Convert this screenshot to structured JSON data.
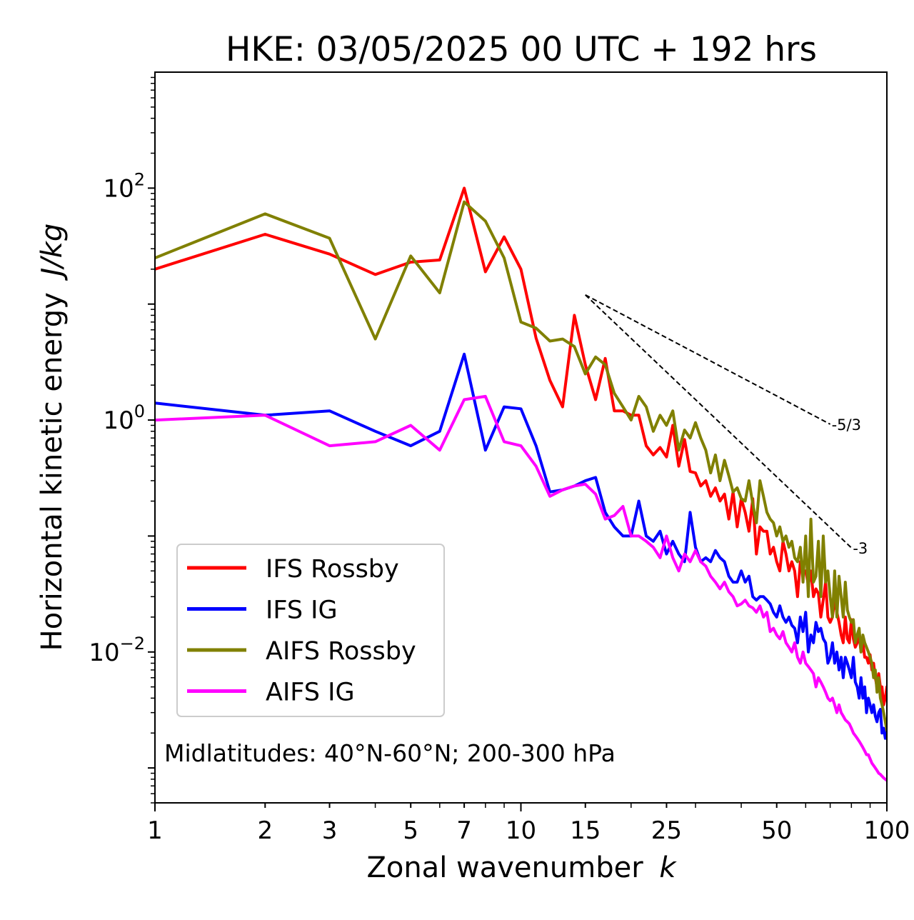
{
  "chart_data": {
    "type": "line",
    "title": "HKE: 03/05/2025 00 UTC + 192 hrs",
    "xlabel": "Zonal wavenumber",
    "xlabel_italic": "k",
    "ylabel": "Horizontal kinetic energy",
    "ylabel_italic": "J/kg",
    "x_scale": "log",
    "y_scale": "log",
    "xlim": [
      1,
      100
    ],
    "ylim": [
      0.0005,
      1000
    ],
    "x_ticks": [
      1,
      2,
      3,
      5,
      7,
      10,
      15,
      25,
      50,
      100
    ],
    "x_tick_labels": [
      "1",
      "2",
      "3",
      "5",
      "7",
      "10",
      "15",
      "25",
      "50",
      "100"
    ],
    "y_ticks": [
      0.01,
      1,
      100
    ],
    "y_tick_labels": [
      {
        "base": "10",
        "exp": "−2"
      },
      {
        "base": "10",
        "exp": "0"
      },
      {
        "base": "10",
        "exp": "2"
      }
    ],
    "grid": false,
    "legend_position": "lower-left",
    "annotation": "Midlatitudes: 40°N-60°N; 200-300 hPa",
    "x": [
      1,
      2,
      3,
      4,
      5,
      6,
      7,
      8,
      9,
      10,
      11,
      12,
      13,
      14,
      15,
      16,
      17,
      18,
      19,
      20,
      21,
      22,
      23,
      24,
      25,
      26,
      27,
      28,
      29,
      30,
      31,
      32,
      33,
      34,
      35,
      36,
      37,
      38,
      39,
      40,
      41,
      42,
      43,
      44,
      45,
      46,
      47,
      48,
      49,
      50,
      51,
      52,
      53,
      54,
      55,
      56,
      57,
      58,
      59,
      60,
      61,
      62,
      63,
      64,
      65,
      66,
      67,
      68,
      69,
      70,
      71,
      72,
      73,
      74,
      75,
      76,
      77,
      78,
      79,
      80,
      81,
      82,
      83,
      84,
      85,
      86,
      87,
      88,
      89,
      90,
      91,
      92,
      93,
      94,
      95,
      96,
      97,
      98,
      99,
      100
    ],
    "series": [
      {
        "name": "IFS Rossby",
        "color": "#ff0000",
        "values": [
          20,
          40,
          27,
          18,
          23,
          24,
          100,
          19,
          38,
          20,
          5.1,
          2.2,
          1.3,
          8,
          3,
          1.5,
          3.4,
          1.2,
          1.2,
          1.1,
          1.1,
          0.6,
          0.5,
          0.58,
          0.48,
          0.9,
          0.4,
          0.68,
          0.36,
          0.35,
          0.27,
          0.3,
          0.22,
          0.26,
          0.2,
          0.23,
          0.14,
          0.24,
          0.12,
          0.21,
          0.16,
          0.11,
          0.21,
          0.07,
          0.12,
          0.11,
          0.11,
          0.07,
          0.08,
          0.06,
          0.05,
          0.09,
          0.07,
          0.05,
          0.06,
          0.05,
          0.03,
          0.06,
          0.05,
          0.05,
          0.038,
          0.05,
          0.03,
          0.035,
          0.032,
          0.02,
          0.028,
          0.04,
          0.02,
          0.018,
          0.02,
          0.028,
          0.022,
          0.018,
          0.014,
          0.012,
          0.02,
          0.013,
          0.012,
          0.019,
          0.013,
          0.011,
          0.012,
          0.014,
          0.01,
          0.012,
          0.009,
          0.009,
          0.008,
          0.0095,
          0.007,
          0.008,
          0.006,
          0.005,
          0.0065,
          0.005,
          0.005,
          0.0035,
          0.004,
          0.005
        ]
      },
      {
        "name": "IFS IG",
        "color": "#0000ff",
        "values": [
          1.4,
          1.1,
          1.2,
          0.8,
          0.6,
          0.8,
          3.7,
          0.55,
          1.3,
          1.25,
          0.6,
          0.24,
          0.25,
          0.27,
          0.3,
          0.32,
          0.16,
          0.12,
          0.1,
          0.1,
          0.2,
          0.1,
          0.09,
          0.11,
          0.07,
          0.09,
          0.07,
          0.06,
          0.16,
          0.08,
          0.06,
          0.065,
          0.06,
          0.075,
          0.065,
          0.06,
          0.045,
          0.04,
          0.04,
          0.05,
          0.04,
          0.045,
          0.03,
          0.028,
          0.03,
          0.03,
          0.028,
          0.026,
          0.022,
          0.02,
          0.025,
          0.02,
          0.018,
          0.02,
          0.017,
          0.016,
          0.012,
          0.02,
          0.015,
          0.022,
          0.01,
          0.014,
          0.012,
          0.018,
          0.015,
          0.016,
          0.013,
          0.012,
          0.008,
          0.009,
          0.012,
          0.008,
          0.01,
          0.007,
          0.009,
          0.006,
          0.009,
          0.008,
          0.007,
          0.006,
          0.009,
          0.0055,
          0.005,
          0.004,
          0.006,
          0.004,
          0.005,
          0.003,
          0.004,
          0.0035,
          0.003,
          0.0035,
          0.0028,
          0.0025,
          0.003,
          0.0032,
          0.002,
          0.0022,
          0.0018,
          0.0022
        ]
      },
      {
        "name": "AIFS Rossby",
        "color": "#808000",
        "values": [
          25,
          60,
          37,
          5,
          26,
          12.5,
          76,
          52,
          25,
          7,
          6.2,
          4.8,
          5,
          4.3,
          2.5,
          3.5,
          3,
          1.7,
          1.3,
          1,
          1.6,
          1.3,
          0.8,
          1.1,
          0.9,
          1.2,
          0.55,
          0.82,
          0.7,
          0.95,
          0.7,
          0.55,
          0.35,
          0.5,
          0.3,
          0.45,
          0.33,
          0.24,
          0.26,
          0.21,
          0.2,
          0.3,
          0.19,
          0.13,
          0.3,
          0.22,
          0.16,
          0.14,
          0.13,
          0.1,
          0.12,
          0.09,
          0.1,
          0.08,
          0.09,
          0.065,
          0.06,
          0.08,
          0.04,
          0.1,
          0.03,
          0.14,
          0.04,
          0.045,
          0.09,
          0.03,
          0.1,
          0.04,
          0.05,
          0.03,
          0.02,
          0.05,
          0.02,
          0.045,
          0.03,
          0.02,
          0.04,
          0.023,
          0.02,
          0.018,
          0.019,
          0.012,
          0.014,
          0.016,
          0.01,
          0.014,
          0.012,
          0.011,
          0.01,
          0.009,
          0.008,
          0.006,
          0.007,
          0.0045,
          0.006,
          0.004,
          0.0035,
          0.003,
          0.0025,
          0.0021
        ]
      },
      {
        "name": "AIFS IG",
        "color": "#ff00ff",
        "values": [
          1,
          1.1,
          0.6,
          0.65,
          0.9,
          0.55,
          1.5,
          1.6,
          0.65,
          0.6,
          0.4,
          0.22,
          0.25,
          0.27,
          0.28,
          0.23,
          0.14,
          0.15,
          0.18,
          0.1,
          0.1,
          0.09,
          0.08,
          0.065,
          0.1,
          0.065,
          0.05,
          0.07,
          0.06,
          0.075,
          0.06,
          0.055,
          0.045,
          0.04,
          0.035,
          0.04,
          0.033,
          0.03,
          0.025,
          0.026,
          0.028,
          0.025,
          0.024,
          0.022,
          0.025,
          0.02,
          0.022,
          0.015,
          0.016,
          0.014,
          0.013,
          0.015,
          0.012,
          0.011,
          0.01,
          0.012,
          0.009,
          0.008,
          0.01,
          0.008,
          0.0075,
          0.007,
          0.0065,
          0.005,
          0.006,
          0.0055,
          0.005,
          0.0045,
          0.004,
          0.0038,
          0.004,
          0.0035,
          0.003,
          0.0035,
          0.003,
          0.0028,
          0.0026,
          0.0025,
          0.0024,
          0.0022,
          0.002,
          0.0019,
          0.0018,
          0.0017,
          0.0016,
          0.0015,
          0.0014,
          0.0013,
          0.0013,
          0.0012,
          0.0011,
          0.00105,
          0.001,
          0.00095,
          0.0009,
          0.00088,
          0.00085,
          0.00082,
          0.0008,
          0.00078
        ]
      }
    ],
    "reference_lines": [
      {
        "label": "-5/3",
        "slope": -1.6667,
        "x_start": 15,
        "x_end": 70,
        "y_start": 12
      },
      {
        "label": "-3",
        "slope": -3,
        "x_start": 15,
        "x_end": 80,
        "y_start": 12
      }
    ]
  }
}
